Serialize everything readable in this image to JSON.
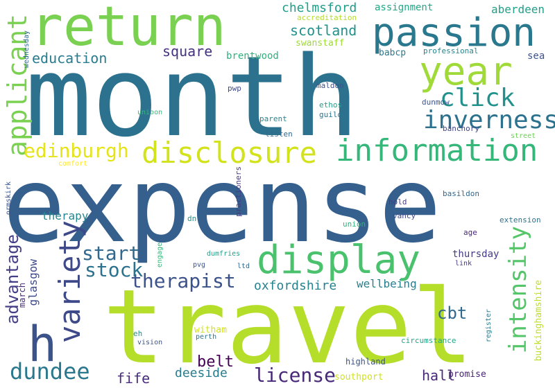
{
  "cloud": {
    "background": "#ffffff",
    "words": [
      {
        "text": "expense",
        "color": "#355f8d"
      },
      {
        "text": "month",
        "color": "#2c728e"
      },
      {
        "text": "travel",
        "color": "#b5de2b"
      },
      {
        "text": "return",
        "color": "#7ad151"
      },
      {
        "text": "passion",
        "color": "#2a788e"
      },
      {
        "text": "year",
        "color": "#a0da39"
      },
      {
        "text": "display",
        "color": "#4ac16d"
      },
      {
        "text": "information",
        "color": "#35b779"
      },
      {
        "text": "disclosure",
        "color": "#d2e21b"
      },
      {
        "text": "applicant",
        "color": "#7ad151"
      },
      {
        "text": "h",
        "color": "#3b528b"
      },
      {
        "text": "variety",
        "color": "#3e4989"
      },
      {
        "text": "click",
        "color": "#21918c"
      },
      {
        "text": "inverness",
        "color": "#2c728e"
      },
      {
        "text": "intensity",
        "color": "#54c568"
      },
      {
        "text": "edinburgh",
        "color": "#e5e419"
      },
      {
        "text": "therapist",
        "color": "#3b528b"
      },
      {
        "text": "dundee",
        "color": "#2a788e"
      },
      {
        "text": "start",
        "color": "#31688e"
      },
      {
        "text": "stock",
        "color": "#2c728e"
      },
      {
        "text": "advantage",
        "color": "#433e85"
      },
      {
        "text": "license",
        "color": "#482878"
      },
      {
        "text": "scotland",
        "color": "#21918c"
      },
      {
        "text": "chelmsford",
        "color": "#1f9e89"
      },
      {
        "text": "assignment",
        "color": "#22a785"
      },
      {
        "text": "aberdeen",
        "color": "#1fa088"
      },
      {
        "text": "education",
        "color": "#287c8e"
      },
      {
        "text": "square",
        "color": "#46327e"
      },
      {
        "text": "cbt",
        "color": "#31688e"
      },
      {
        "text": "belt",
        "color": "#440154"
      },
      {
        "text": "hall",
        "color": "#482878"
      },
      {
        "text": "fife",
        "color": "#472d7b"
      },
      {
        "text": "deeside",
        "color": "#287c8e"
      },
      {
        "text": "glasgow",
        "color": "#3e4989"
      },
      {
        "text": "therapy",
        "color": "#24868e"
      },
      {
        "text": "oxfordshire",
        "color": "#26828e"
      },
      {
        "text": "wellbeing",
        "color": "#277f8e"
      },
      {
        "text": "thursday",
        "color": "#443a83"
      },
      {
        "text": "brentwood",
        "color": "#2db27d"
      },
      {
        "text": "babcp",
        "color": "#2a788e"
      },
      {
        "text": "swanstaff",
        "color": "#a0da39"
      },
      {
        "text": "sea",
        "color": "#3b528b"
      },
      {
        "text": "buckinghamshire",
        "color": "#bddf26"
      },
      {
        "text": "witham",
        "color": "#d2e21b"
      },
      {
        "text": "southport",
        "color": "#d2e21b"
      },
      {
        "text": "promise",
        "color": "#482475"
      },
      {
        "text": "highland",
        "color": "#3b528b"
      },
      {
        "text": "march",
        "color": "#472d7b"
      },
      {
        "text": "accreditation",
        "color": "#b5de2b"
      },
      {
        "text": "professional",
        "color": "#25858e"
      },
      {
        "text": "wednesday",
        "color": "#31688e"
      },
      {
        "text": "pwp",
        "color": "#3e4989"
      },
      {
        "text": "maldon",
        "color": "#3b528b"
      },
      {
        "text": "ethos",
        "color": "#1f9e89"
      },
      {
        "text": "guild",
        "color": "#2c728e"
      },
      {
        "text": "dunmow",
        "color": "#3b528b"
      },
      {
        "text": "parent",
        "color": "#25858e"
      },
      {
        "text": "unioon",
        "color": "#35b779"
      },
      {
        "text": "listen",
        "color": "#31688e"
      },
      {
        "text": "banchory",
        "color": "#414487"
      },
      {
        "text": "street",
        "color": "#6ece58"
      },
      {
        "text": "comfort",
        "color": "#fde725"
      },
      {
        "text": "ormskirk",
        "color": "#3b528b"
      },
      {
        "text": "practioners",
        "color": "#443a83"
      },
      {
        "text": "basildon",
        "color": "#31688e"
      },
      {
        "text": "hold",
        "color": "#433e85"
      },
      {
        "text": "extension",
        "color": "#2c728e"
      },
      {
        "text": "dn",
        "color": "#21918c"
      },
      {
        "text": "union",
        "color": "#2db27d"
      },
      {
        "text": "vancy",
        "color": "#3e4989"
      },
      {
        "text": "age",
        "color": "#482878"
      },
      {
        "text": "engage",
        "color": "#35b779"
      },
      {
        "text": "dumfries",
        "color": "#1f9e89"
      },
      {
        "text": "pvg",
        "color": "#3b528b"
      },
      {
        "text": "ltd",
        "color": "#31688e"
      },
      {
        "text": "link",
        "color": "#443a83"
      },
      {
        "text": "eh",
        "color": "#21918c"
      },
      {
        "text": "vision",
        "color": "#3b528b"
      },
      {
        "text": "perth",
        "color": "#2c728e"
      },
      {
        "text": "register",
        "color": "#287c8e"
      },
      {
        "text": "circumstance",
        "color": "#22a785"
      }
    ]
  }
}
